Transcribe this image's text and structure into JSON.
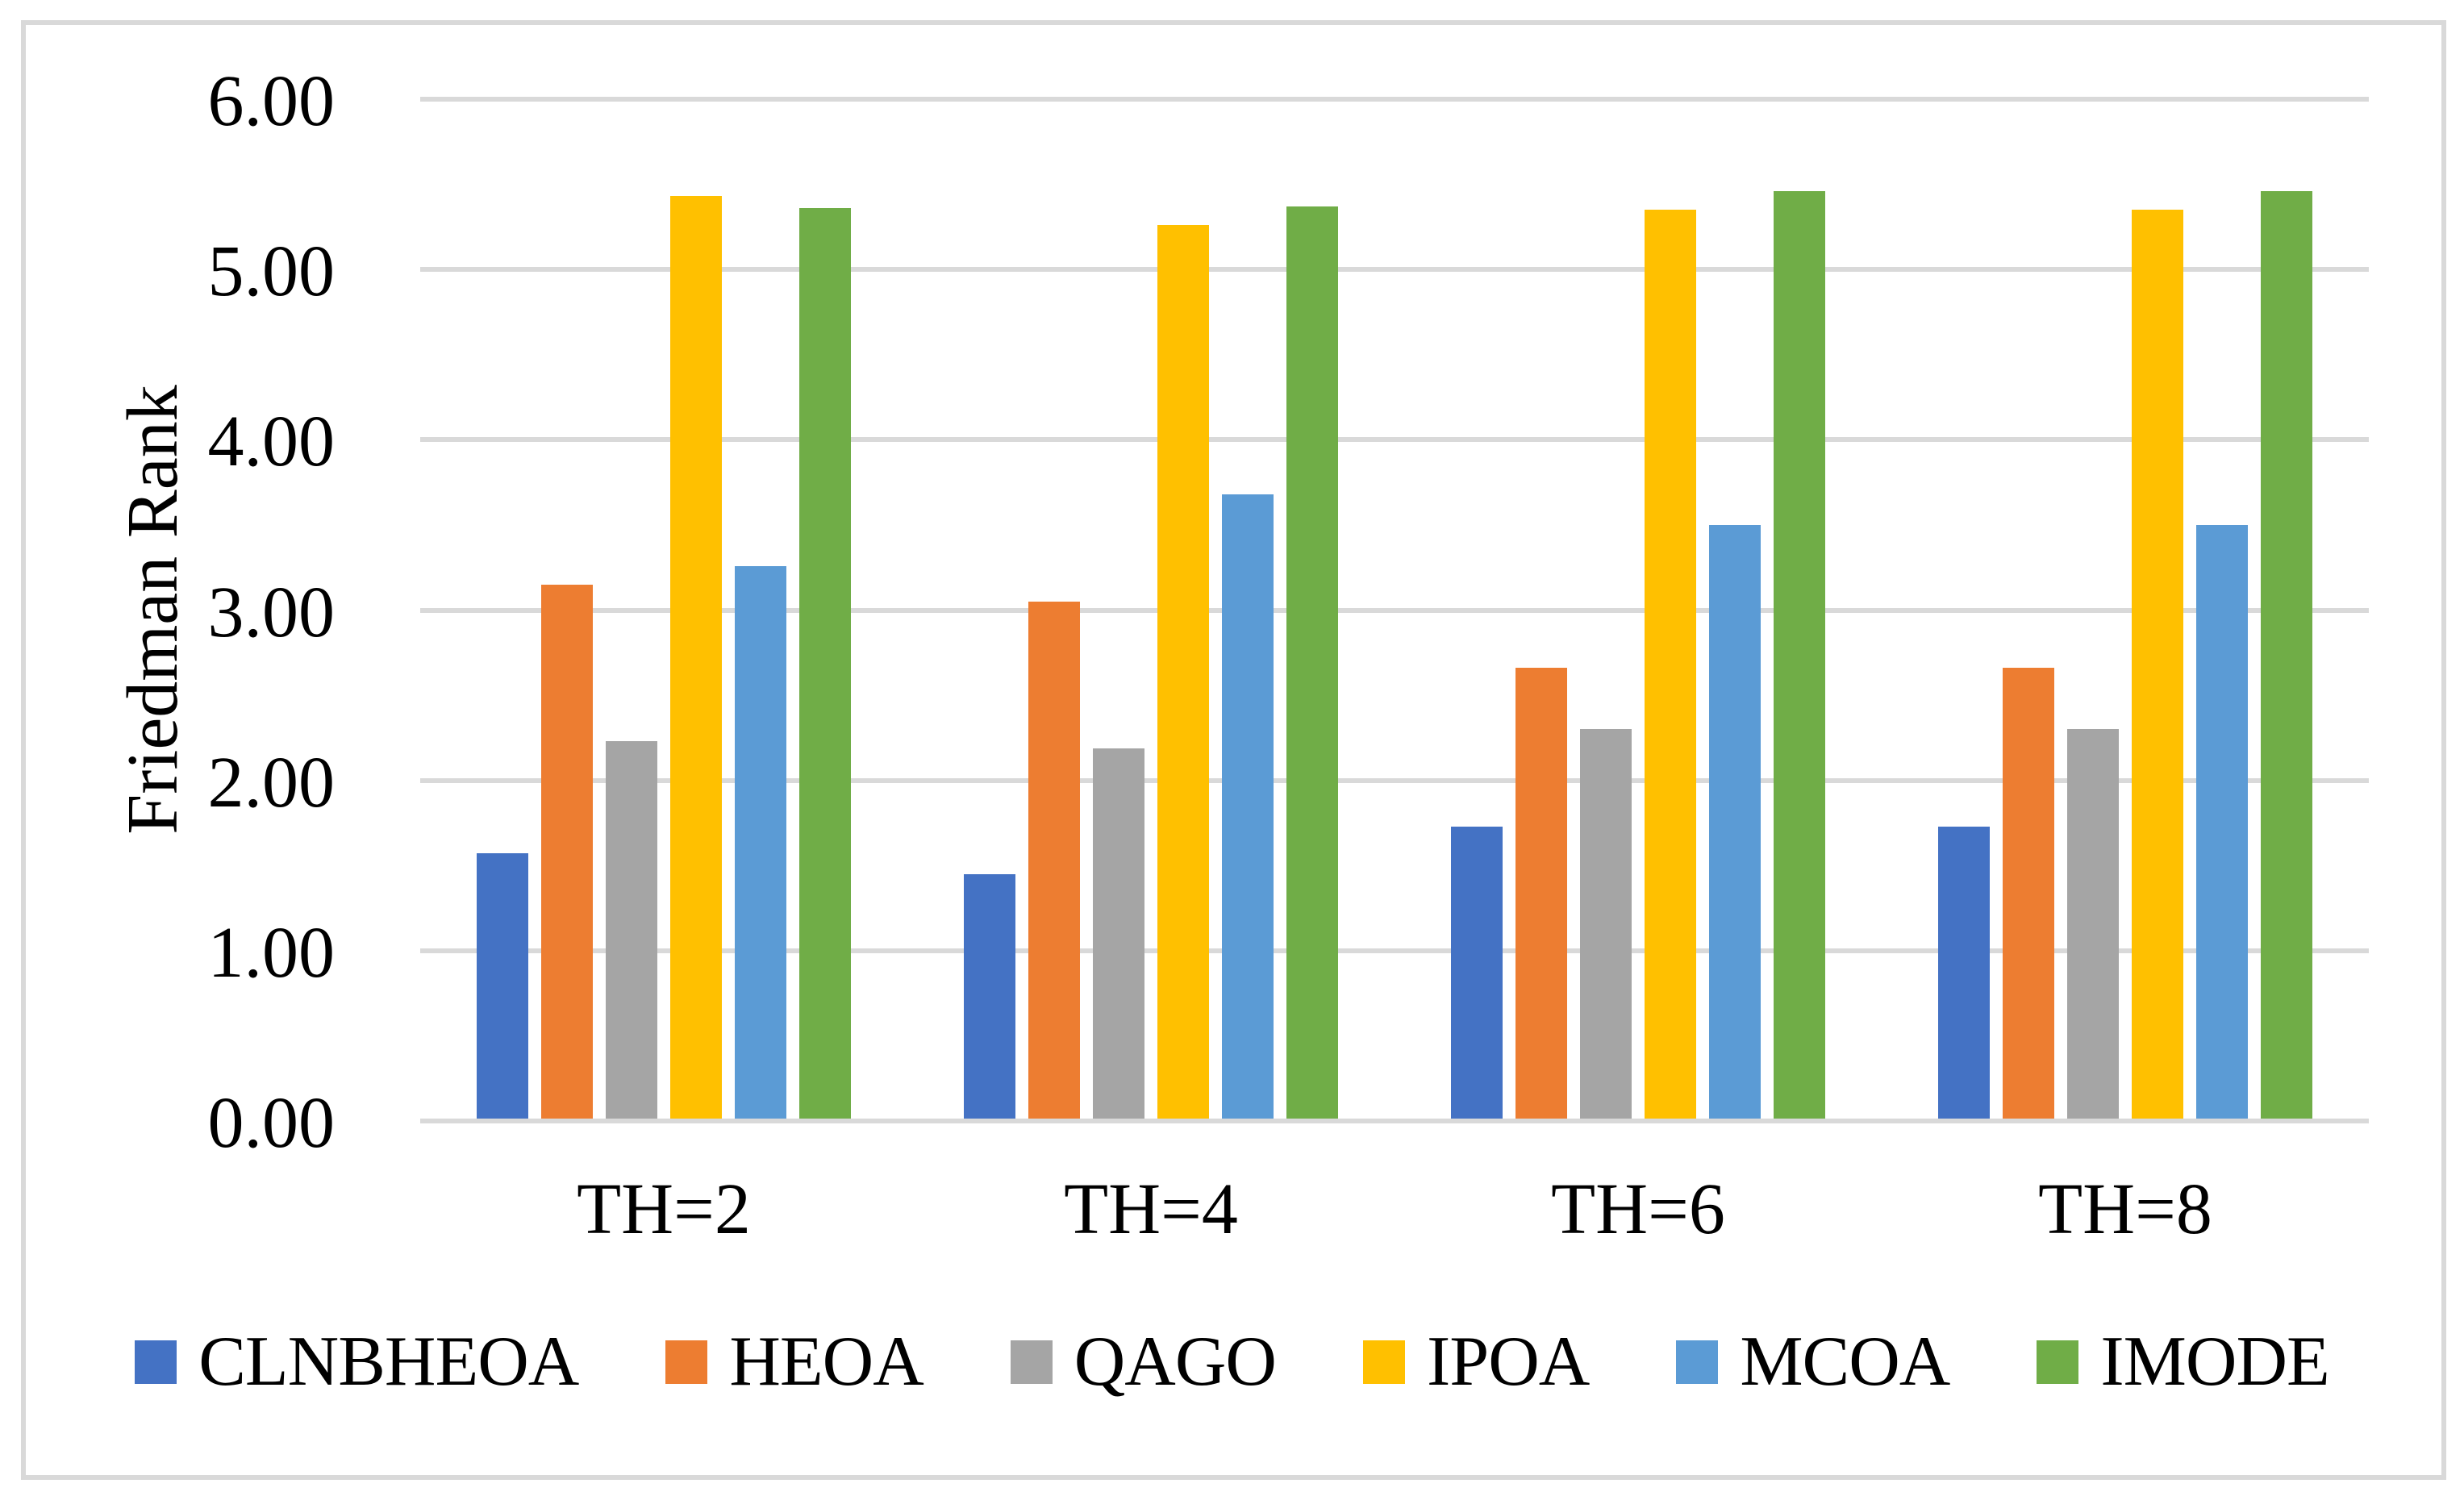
{
  "figure": {
    "background": "#FFFFFF",
    "border_color": "#D9D9D9",
    "gridline_color": "#D9D9D9"
  },
  "chart_data": {
    "type": "bar",
    "title": "",
    "xlabel": "",
    "ylabel": "Friedman Rank",
    "categories": [
      "TH=2",
      "TH=4",
      "TH=6",
      "TH=8"
    ],
    "series": [
      {
        "name": "CLNBHEOA",
        "color": "#4472C4",
        "values": [
          1.57,
          1.45,
          1.73,
          1.73
        ]
      },
      {
        "name": "HEOA",
        "color": "#ED7D31",
        "values": [
          3.15,
          3.05,
          2.66,
          2.66
        ]
      },
      {
        "name": "QAGO",
        "color": "#A5A5A5",
        "values": [
          2.23,
          2.19,
          2.3,
          2.3
        ]
      },
      {
        "name": "IPOA",
        "color": "#FFC000",
        "values": [
          5.43,
          5.26,
          5.35,
          5.35
        ]
      },
      {
        "name": "MCOA",
        "color": "#5B9BD5",
        "values": [
          3.26,
          3.68,
          3.5,
          3.5
        ]
      },
      {
        "name": "IMODE",
        "color": "#70AD47",
        "values": [
          5.36,
          5.37,
          5.46,
          5.46
        ]
      }
    ],
    "ylim": [
      0,
      6
    ],
    "ytick_step": 1,
    "ytick_labels": [
      "0.00",
      "1.00",
      "2.00",
      "3.00",
      "4.00",
      "5.00",
      "6.00"
    ],
    "grid": true,
    "legend_position": "bottom"
  }
}
